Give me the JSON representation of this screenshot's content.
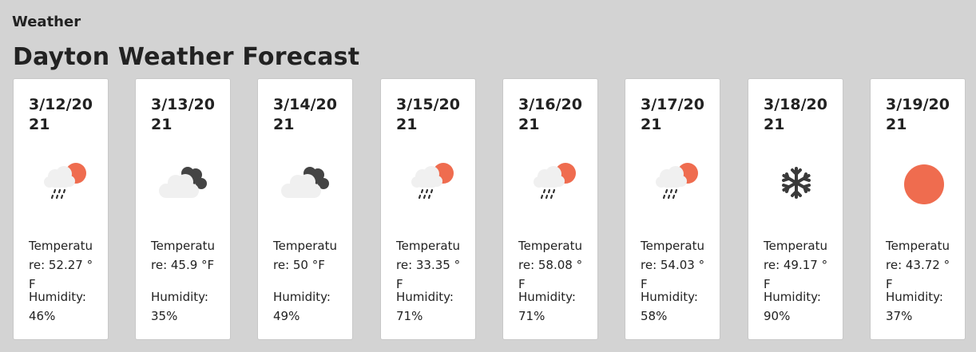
{
  "app": {
    "title": "Weather"
  },
  "page": {
    "title": "Dayton Weather Forecast"
  },
  "forecast": [
    {
      "date": "3/12/2021",
      "icon": "rain-sun-icon",
      "temperature": "Temperature: 52.27 °F",
      "humidity": "Humidity: 46%"
    },
    {
      "date": "3/13/2021",
      "icon": "overcast-icon",
      "temperature": "Temperature: 45.9 °F",
      "humidity": "Humidity: 35%"
    },
    {
      "date": "3/14/2021",
      "icon": "overcast-icon",
      "temperature": "Temperature: 50 °F",
      "humidity": "Humidity: 49%"
    },
    {
      "date": "3/15/2021",
      "icon": "rain-sun-icon",
      "temperature": "Temperature: 33.35 °F",
      "humidity": "Humidity: 71%"
    },
    {
      "date": "3/16/2021",
      "icon": "rain-sun-icon",
      "temperature": "Temperature: 58.08 °F",
      "humidity": "Humidity: 71%"
    },
    {
      "date": "3/17/2021",
      "icon": "rain-sun-icon",
      "temperature": "Temperature: 54.03 °F",
      "humidity": "Humidity: 58%"
    },
    {
      "date": "3/18/2021",
      "icon": "snowflake-icon",
      "temperature": "Temperature: 49.17 °F",
      "humidity": "Humidity: 90%"
    },
    {
      "date": "3/19/2021",
      "icon": "sun-icon",
      "temperature": "Temperature: 43.72 °F",
      "humidity": "Humidity: 37%"
    }
  ],
  "colors": {
    "background": "#d3d3d3",
    "sun": "#ef6c4f",
    "cloud_light": "#f0f0f0",
    "cloud_dark": "#444444"
  }
}
